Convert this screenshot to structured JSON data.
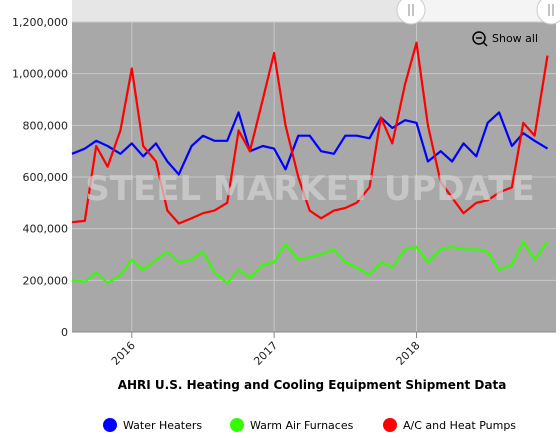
{
  "chart_data": {
    "type": "line",
    "title": "AHRI U.S. Heating and Cooling Equipment Shipment Data",
    "watermark": "STEEL MARKET UPDATE",
    "button": "Show all",
    "x": [
      2015.58,
      2015.67,
      2015.75,
      2015.83,
      2015.92,
      2016.0,
      2016.08,
      2016.17,
      2016.25,
      2016.33,
      2016.42,
      2016.5,
      2016.58,
      2016.67,
      2016.75,
      2016.83,
      2016.92,
      2017.0,
      2017.08,
      2017.17,
      2017.25,
      2017.33,
      2017.42,
      2017.5,
      2017.58,
      2017.67,
      2017.75,
      2017.83,
      2017.92,
      2018.0,
      2018.08,
      2018.17,
      2018.25,
      2018.33,
      2018.42,
      2018.5,
      2018.58,
      2018.67,
      2018.75,
      2018.83,
      2018.92
    ],
    "xlim": [
      2015.58,
      2018.98
    ],
    "xticks": [
      2016,
      2017,
      2018
    ],
    "ylim": [
      0,
      1200000
    ],
    "yticks": [
      0,
      {
        "value": 200000,
        "label": "200,000"
      },
      {
        "value": 400000,
        "label": "400,000"
      },
      {
        "value": 600000,
        "label": "600,000"
      },
      {
        "value": 800000,
        "label": "800,000"
      },
      {
        "value": 1000000,
        "label": "1,000,000"
      },
      {
        "value": 1200000,
        "label": "1,200,000"
      }
    ],
    "grid": true,
    "legend": "bottom",
    "series": [
      {
        "name": "Water Heaters",
        "color": "#0000ff",
        "values": [
          690000,
          710000,
          740000,
          720000,
          690000,
          730000,
          680000,
          730000,
          660000,
          610000,
          720000,
          760000,
          740000,
          740000,
          850000,
          700000,
          720000,
          710000,
          630000,
          760000,
          760000,
          700000,
          690000,
          760000,
          760000,
          750000,
          830000,
          790000,
          820000,
          810000,
          660000,
          700000,
          660000,
          730000,
          680000,
          810000,
          850000,
          720000,
          770000,
          740000,
          710000
        ]
      },
      {
        "name": "Warm Air Furnaces",
        "color": "#33ff00",
        "values": [
          200000,
          195000,
          230000,
          190000,
          220000,
          280000,
          240000,
          280000,
          310000,
          270000,
          280000,
          310000,
          230000,
          190000,
          240000,
          210000,
          260000,
          270000,
          340000,
          280000,
          290000,
          300000,
          320000,
          270000,
          250000,
          220000,
          270000,
          250000,
          320000,
          330000,
          270000,
          320000,
          330000,
          320000,
          320000,
          310000,
          240000,
          260000,
          350000,
          280000,
          350000
        ]
      },
      {
        "name": "A/C and Heat Pumps",
        "color": "#ff0000",
        "values": [
          425000,
          430000,
          720000,
          640000,
          780000,
          1020000,
          720000,
          660000,
          470000,
          420000,
          440000,
          460000,
          470000,
          500000,
          780000,
          700000,
          900000,
          1080000,
          800000,
          600000,
          470000,
          440000,
          470000,
          480000,
          500000,
          560000,
          830000,
          730000,
          960000,
          1120000,
          800000,
          580000,
          520000,
          460000,
          500000,
          510000,
          540000,
          560000,
          810000,
          760000,
          1070000
        ]
      }
    ]
  }
}
